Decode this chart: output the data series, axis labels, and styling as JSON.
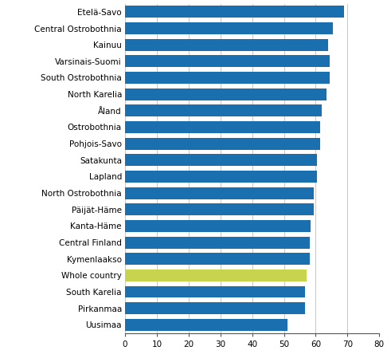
{
  "categories": [
    "Etelä-Savo",
    "Central Ostrobothnia",
    "Kainuu",
    "Varsinais-Suomi",
    "South Ostrobothnia",
    "North Karelia",
    "Åland",
    "Ostrobothnia",
    "Pohjois-Savo",
    "Satakunta",
    "Lapland",
    "North Ostrobothnia",
    "Päijät-Häme",
    "Kanta-Häme",
    "Central Finland",
    "Kymenlaakso",
    "Whole country",
    "South Karelia",
    "Pirkanmaa",
    "Uusimaa"
  ],
  "values": [
    69.0,
    65.5,
    64.0,
    64.5,
    64.5,
    63.5,
    62.0,
    61.5,
    61.5,
    60.5,
    60.5,
    59.5,
    59.5,
    58.5,
    58.0,
    58.0,
    57.0,
    56.5,
    56.5,
    51.0
  ],
  "bar_colors": [
    "#1a6faf",
    "#1a6faf",
    "#1a6faf",
    "#1a6faf",
    "#1a6faf",
    "#1a6faf",
    "#1a6faf",
    "#1a6faf",
    "#1a6faf",
    "#1a6faf",
    "#1a6faf",
    "#1a6faf",
    "#1a6faf",
    "#1a6faf",
    "#1a6faf",
    "#1a6faf",
    "#c8d44e",
    "#1a6faf",
    "#1a6faf",
    "#1a6faf"
  ],
  "xlim": [
    0,
    80
  ],
  "xticks": [
    0,
    10,
    20,
    30,
    40,
    50,
    60,
    70,
    80
  ],
  "bar_height": 0.72,
  "grid_color": "#c8c8c8",
  "background_color": "#ffffff",
  "figure_width": 4.91,
  "figure_height": 4.54,
  "tick_fontsize": 7.5,
  "label_fontsize": 7.5
}
